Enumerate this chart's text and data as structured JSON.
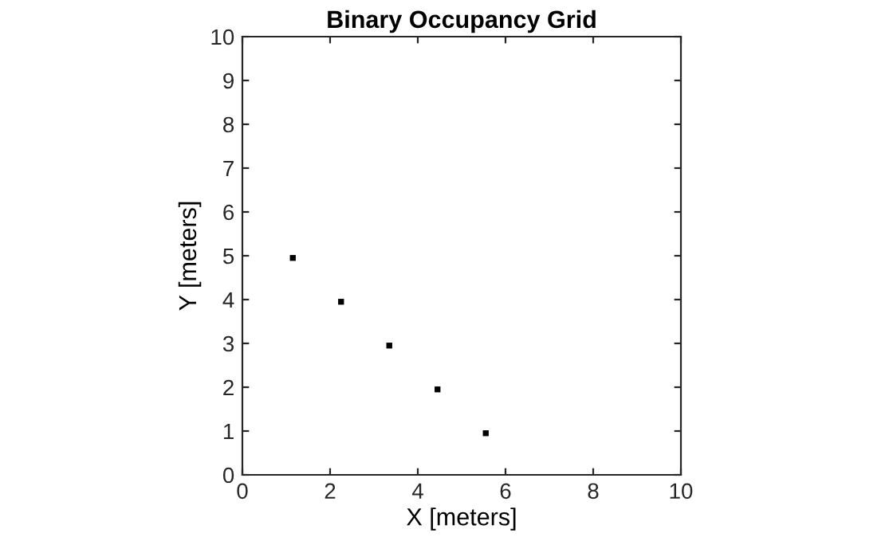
{
  "chart_data": {
    "type": "scatter",
    "title": "Binary Occupancy Grid",
    "xlabel": "X [meters]",
    "ylabel": "Y [meters]",
    "x": [
      1.15,
      2.25,
      3.35,
      4.45,
      5.55
    ],
    "series": [
      {
        "color": "#000000",
        "values": [
          4.95,
          3.95,
          2.95,
          1.95,
          0.95
        ]
      }
    ],
    "marker": "square",
    "grid": false,
    "xlim": [
      0,
      10
    ],
    "ylim": [
      0,
      10
    ],
    "xticks": [
      0,
      2,
      4,
      6,
      8,
      10
    ],
    "yticks": [
      0,
      1,
      2,
      3,
      4,
      5,
      6,
      7,
      8,
      9,
      10
    ]
  }
}
